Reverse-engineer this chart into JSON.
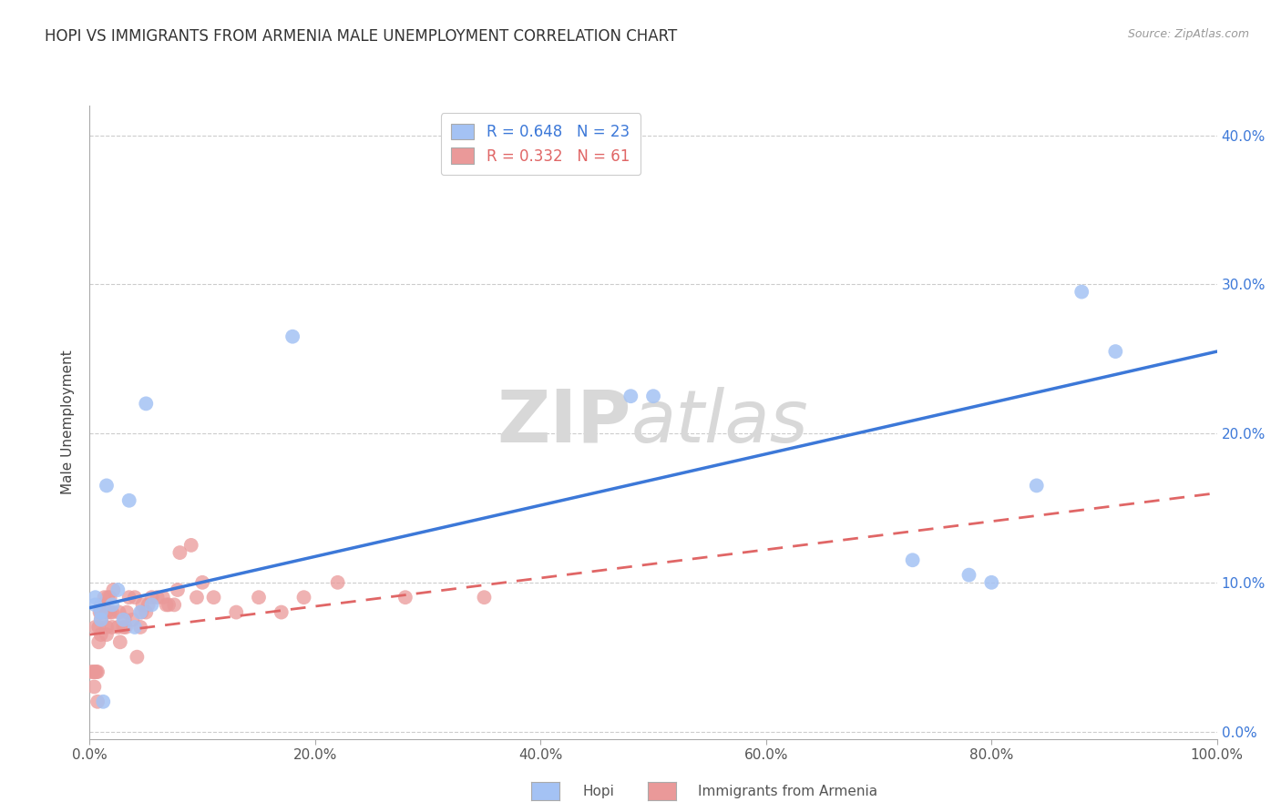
{
  "title": "HOPI VS IMMIGRANTS FROM ARMENIA MALE UNEMPLOYMENT CORRELATION CHART",
  "source": "Source: ZipAtlas.com",
  "ylabel": "Male Unemployment",
  "xlabel_ticks": [
    "0.0%",
    "20.0%",
    "40.0%",
    "60.0%",
    "80.0%",
    "100.0%"
  ],
  "ylabel_ticks": [
    "0.0%",
    "10.0%",
    "20.0%",
    "30.0%",
    "40.0%"
  ],
  "xlim": [
    0.0,
    1.0
  ],
  "ylim": [
    -0.005,
    0.42
  ],
  "legend_label1": "Hopi",
  "legend_label2": "Immigrants from Armenia",
  "legend_r1": "R = 0.648",
  "legend_n1": "N = 23",
  "legend_r2": "R = 0.332",
  "legend_n2": "N = 61",
  "color_hopi": "#a4c2f4",
  "color_armenia": "#ea9999",
  "color_hopi_line": "#3c78d8",
  "color_armenia_line": "#e06666",
  "watermark_zip": "ZIP",
  "watermark_atlas": "atlas",
  "hopi_x": [
    0.005,
    0.005,
    0.01,
    0.01,
    0.012,
    0.015,
    0.02,
    0.025,
    0.03,
    0.035,
    0.04,
    0.045,
    0.05,
    0.055,
    0.18,
    0.48,
    0.5,
    0.73,
    0.78,
    0.8,
    0.84,
    0.88,
    0.91
  ],
  "hopi_y": [
    0.09,
    0.085,
    0.075,
    0.08,
    0.02,
    0.165,
    0.085,
    0.095,
    0.075,
    0.155,
    0.07,
    0.08,
    0.22,
    0.085,
    0.265,
    0.225,
    0.225,
    0.115,
    0.105,
    0.1,
    0.165,
    0.295,
    0.255
  ],
  "armenia_x": [
    0.002,
    0.003,
    0.004,
    0.005,
    0.005,
    0.006,
    0.007,
    0.007,
    0.008,
    0.008,
    0.009,
    0.01,
    0.01,
    0.01,
    0.01,
    0.012,
    0.013,
    0.015,
    0.015,
    0.015,
    0.016,
    0.018,
    0.018,
    0.02,
    0.02,
    0.021,
    0.025,
    0.026,
    0.027,
    0.03,
    0.031,
    0.032,
    0.033,
    0.035,
    0.038,
    0.04,
    0.042,
    0.045,
    0.046,
    0.047,
    0.05,
    0.052,
    0.055,
    0.06,
    0.065,
    0.068,
    0.07,
    0.075,
    0.078,
    0.08,
    0.09,
    0.095,
    0.1,
    0.11,
    0.13,
    0.15,
    0.17,
    0.19,
    0.22,
    0.28,
    0.35
  ],
  "armenia_y": [
    0.04,
    0.04,
    0.03,
    0.07,
    0.04,
    0.04,
    0.02,
    0.04,
    0.06,
    0.07,
    0.08,
    0.065,
    0.075,
    0.08,
    0.085,
    0.085,
    0.09,
    0.065,
    0.07,
    0.08,
    0.09,
    0.08,
    0.09,
    0.07,
    0.08,
    0.095,
    0.07,
    0.08,
    0.06,
    0.07,
    0.075,
    0.07,
    0.08,
    0.09,
    0.075,
    0.09,
    0.05,
    0.07,
    0.08,
    0.085,
    0.08,
    0.085,
    0.09,
    0.09,
    0.09,
    0.085,
    0.085,
    0.085,
    0.095,
    0.12,
    0.125,
    0.09,
    0.1,
    0.09,
    0.08,
    0.09,
    0.08,
    0.09,
    0.1,
    0.09,
    0.09
  ],
  "hopi_line_x0": 0.0,
  "hopi_line_y0": 0.083,
  "hopi_line_x1": 1.0,
  "hopi_line_y1": 0.255,
  "armenia_line_x0": 0.0,
  "armenia_line_y0": 0.065,
  "armenia_line_x1": 1.0,
  "armenia_line_y1": 0.16
}
